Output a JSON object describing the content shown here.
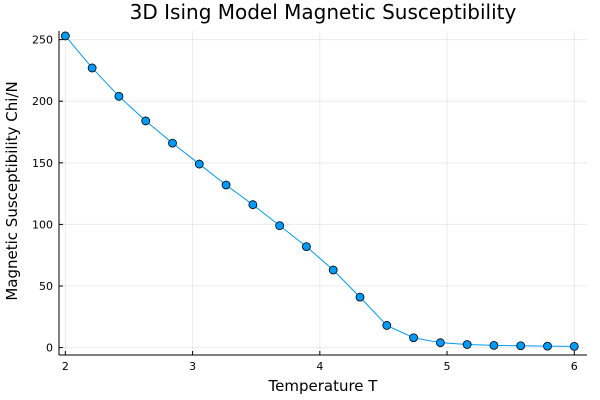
{
  "chart_data": {
    "type": "line",
    "title": "3D Ising Model Magnetic Susceptibility",
    "xlabel": "Temperature T",
    "ylabel": "Magnetic Susceptibility Chi/N",
    "xlim": [
      1.95,
      6.1
    ],
    "ylim": [
      -6,
      257
    ],
    "xticks": [
      2,
      3,
      4,
      5,
      6
    ],
    "yticks": [
      0,
      50,
      100,
      150,
      200,
      250
    ],
    "grid": true,
    "legend": "none",
    "series": [
      {
        "color": "#009AF9",
        "marker": "circle",
        "x": [
          2.0,
          2.2105,
          2.4211,
          2.6316,
          2.8421,
          3.0526,
          3.2632,
          3.4737,
          3.6842,
          3.8947,
          4.1053,
          4.3158,
          4.5263,
          4.7368,
          4.9474,
          5.1579,
          5.3684,
          5.5789,
          5.7895,
          6.0
        ],
        "y": [
          253,
          227,
          204,
          184,
          166,
          149,
          132,
          116,
          99,
          82,
          63,
          41,
          18,
          8,
          4,
          2.5,
          1.8,
          1.5,
          1.2,
          1.0
        ]
      }
    ]
  }
}
